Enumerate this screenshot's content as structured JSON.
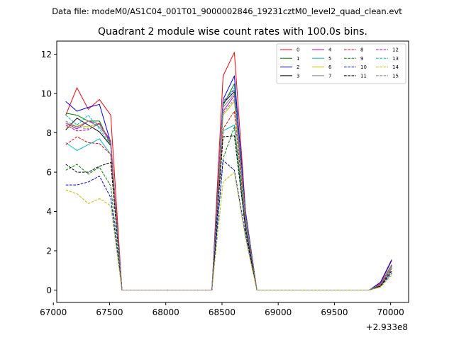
{
  "figure": {
    "suptitle": "Data file: modeM0/AS1C04_001T01_9000002846_19231cztM0_level2_quad_clean.evt"
  },
  "chart_data": {
    "type": "line",
    "title": "Quadrant 2 module wise count rates with 100.0s bins.",
    "xlabel": "",
    "ylabel": "",
    "x_offset_label": "+2.933e8",
    "xlim": [
      67030,
      70160
    ],
    "ylim": [
      -0.63,
      12.67
    ],
    "xticks": [
      67000,
      67500,
      68000,
      68500,
      69000,
      69500,
      70000
    ],
    "xtick_labels": [
      "67000",
      "67500",
      "68000",
      "68500",
      "69000",
      "69500",
      "70000"
    ],
    "yticks": [
      0,
      2,
      4,
      6,
      8,
      10,
      12
    ],
    "ytick_labels": [
      "0",
      "2",
      "4",
      "6",
      "8",
      "10",
      "12"
    ],
    "grid": false,
    "legend": {
      "location": "top-right",
      "columns": 4
    },
    "x": [
      67110,
      67210,
      67310,
      67410,
      67510,
      67610,
      67710,
      67810,
      67910,
      68010,
      68110,
      68210,
      68310,
      68410,
      68510,
      68610,
      68710,
      68810,
      68910,
      69010,
      69110,
      69210,
      69310,
      69410,
      69510,
      69610,
      69710,
      69810,
      69910,
      70010
    ],
    "series": [
      {
        "name": "0",
        "color": "#ff0000",
        "dash": "solid",
        "values": [
          8.9,
          10.3,
          9.2,
          9.7,
          8.9,
          0,
          0,
          0,
          0,
          0,
          0,
          0,
          0,
          0,
          10.9,
          12.1,
          4.0,
          0,
          0,
          0,
          0,
          0,
          0,
          0,
          0,
          0,
          0,
          0,
          0.35,
          1.5
        ]
      },
      {
        "name": "1",
        "color": "#008000",
        "dash": "solid",
        "values": [
          9.0,
          8.9,
          8.6,
          8.6,
          7.4,
          0,
          0,
          0,
          0,
          0,
          0,
          0,
          0,
          0,
          9.4,
          10.5,
          3.8,
          0,
          0,
          0,
          0,
          0,
          0,
          0,
          0,
          0,
          0,
          0,
          0.3,
          1.3
        ]
      },
      {
        "name": "2",
        "color": "#0000ff",
        "dash": "solid",
        "values": [
          9.6,
          9.1,
          9.3,
          9.45,
          7.5,
          0,
          0,
          0,
          0,
          0,
          0,
          0,
          0,
          0,
          9.7,
          10.9,
          3.9,
          0,
          0,
          0,
          0,
          0,
          0,
          0,
          0,
          0,
          0,
          0,
          0.4,
          1.55
        ]
      },
      {
        "name": "3",
        "color": "#000000",
        "dash": "solid",
        "values": [
          8.15,
          8.75,
          8.4,
          8.05,
          7.35,
          0,
          0,
          0,
          0,
          0,
          0,
          0,
          0,
          0,
          9.5,
          10.1,
          3.7,
          0,
          0,
          0,
          0,
          0,
          0,
          0,
          0,
          0,
          0,
          0,
          0.3,
          1.2
        ]
      },
      {
        "name": "4",
        "color": "#bf00bf",
        "dash": "solid",
        "values": [
          8.5,
          8.2,
          8.6,
          8.45,
          7.6,
          0,
          0,
          0,
          0,
          0,
          0,
          0,
          0,
          0,
          9.1,
          9.9,
          3.6,
          0,
          0,
          0,
          0,
          0,
          0,
          0,
          0,
          0,
          0,
          0,
          0.3,
          1.25
        ]
      },
      {
        "name": "5",
        "color": "#00bfbf",
        "dash": "solid",
        "values": [
          7.5,
          7.1,
          7.4,
          7.7,
          6.9,
          0,
          0,
          0,
          0,
          0,
          0,
          0,
          0,
          0,
          8.1,
          8.4,
          3.3,
          0,
          0,
          0,
          0,
          0,
          0,
          0,
          0,
          0,
          0,
          0,
          0.25,
          1.1
        ]
      },
      {
        "name": "6",
        "color": "#bfbf00",
        "dash": "solid",
        "values": [
          8.3,
          8.4,
          8.3,
          8.5,
          7.5,
          0,
          0,
          0,
          0,
          0,
          0,
          0,
          0,
          0,
          8.9,
          9.6,
          3.6,
          0,
          0,
          0,
          0,
          0,
          0,
          0,
          0,
          0,
          0,
          0,
          0.3,
          1.2
        ]
      },
      {
        "name": "7",
        "color": "#808080",
        "dash": "solid",
        "values": [
          8.5,
          8.3,
          8.6,
          8.3,
          7.6,
          0,
          0,
          0,
          0,
          0,
          0,
          0,
          0,
          0,
          9.3,
          10.0,
          3.7,
          0,
          0,
          0,
          0,
          0,
          0,
          0,
          0,
          0,
          0,
          0,
          0.3,
          1.25
        ]
      },
      {
        "name": "8",
        "color": "#ff0000",
        "dash": "dashed",
        "values": [
          7.4,
          7.8,
          7.5,
          7.45,
          6.9,
          0,
          0,
          0,
          0,
          0,
          0,
          0,
          0,
          0,
          8.2,
          9.1,
          3.4,
          0,
          0,
          0,
          0,
          0,
          0,
          0,
          0,
          0,
          0,
          0,
          0.25,
          1.1
        ]
      },
      {
        "name": "9",
        "color": "#008000",
        "dash": "dashed",
        "values": [
          6.1,
          6.4,
          5.9,
          6.25,
          5.3,
          0,
          0,
          0,
          0,
          0,
          0,
          0,
          0,
          0,
          6.7,
          8.3,
          3.0,
          0,
          0,
          0,
          0,
          0,
          0,
          0,
          0,
          0,
          0,
          0,
          0.2,
          0.95
        ]
      },
      {
        "name": "10",
        "color": "#0000ff",
        "dash": "dashed",
        "values": [
          5.35,
          5.35,
          5.5,
          5.8,
          4.7,
          0,
          0,
          0,
          0,
          0,
          0,
          0,
          0,
          0,
          6.6,
          6.1,
          2.8,
          0,
          0,
          0,
          0,
          0,
          0,
          0,
          0,
          0,
          0,
          0,
          0.2,
          0.85
        ]
      },
      {
        "name": "11",
        "color": "#000000",
        "dash": "dashed",
        "values": [
          6.4,
          6.0,
          6.0,
          6.3,
          6.5,
          0,
          0,
          0,
          0,
          0,
          0,
          0,
          0,
          0,
          7.8,
          7.85,
          3.1,
          0,
          0,
          0,
          0,
          0,
          0,
          0,
          0,
          0,
          0,
          0,
          0.2,
          1.0
        ]
      },
      {
        "name": "12",
        "color": "#bf00bf",
        "dash": "dashed",
        "values": [
          8.4,
          8.1,
          8.15,
          8.5,
          7.5,
          0,
          0,
          0,
          0,
          0,
          0,
          0,
          0,
          0,
          9.6,
          10.2,
          3.7,
          0,
          0,
          0,
          0,
          0,
          0,
          0,
          0,
          0,
          0,
          0,
          0.3,
          1.3
        ]
      },
      {
        "name": "13",
        "color": "#00bfbf",
        "dash": "dashed",
        "values": [
          8.9,
          8.4,
          8.9,
          8.2,
          7.4,
          0,
          0,
          0,
          0,
          0,
          0,
          0,
          0,
          0,
          9.5,
          10.3,
          3.8,
          0,
          0,
          0,
          0,
          0,
          0,
          0,
          0,
          0,
          0,
          0,
          0.3,
          1.3
        ]
      },
      {
        "name": "14",
        "color": "#bfbf00",
        "dash": "dashed",
        "values": [
          5.1,
          4.9,
          4.4,
          4.65,
          4.3,
          0,
          0,
          0,
          0,
          0,
          0,
          0,
          0,
          0,
          5.5,
          6.0,
          2.6,
          0,
          0,
          0,
          0,
          0,
          0,
          0,
          0,
          0,
          0,
          0,
          0.15,
          0.75
        ]
      },
      {
        "name": "15",
        "color": "#808080",
        "dash": "dashed",
        "values": [
          8.6,
          8.3,
          8.2,
          8.45,
          7.4,
          0,
          0,
          0,
          0,
          0,
          0,
          0,
          0,
          0,
          9.0,
          9.7,
          3.6,
          0,
          0,
          0,
          0,
          0,
          0,
          0,
          0,
          0,
          0,
          0,
          0.3,
          1.2
        ]
      }
    ]
  }
}
